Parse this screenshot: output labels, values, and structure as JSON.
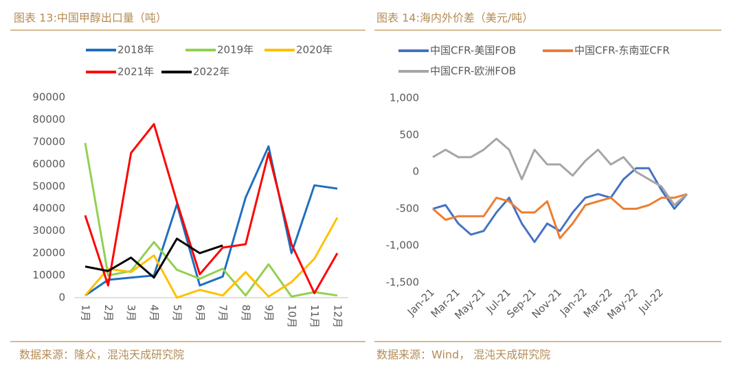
{
  "chart_data": [
    {
      "type": "line",
      "title": "图表 13:中国甲醇出口量（吨）",
      "source": "数据来源：隆众，混沌天成研究院",
      "categories": [
        "1月",
        "2月",
        "3月",
        "4月",
        "5月",
        "6月",
        "7月",
        "8月",
        "9月",
        "10月",
        "11月",
        "12月"
      ],
      "series": [
        {
          "name": "2018年",
          "color": "#1f6fbf",
          "values": [
            1000,
            8000,
            9000,
            10000,
            42000,
            5500,
            9500,
            45000,
            68000,
            20000,
            50500,
            49000
          ]
        },
        {
          "name": "2019年",
          "color": "#92d050",
          "values": [
            69500,
            10000,
            12000,
            25000,
            12500,
            8500,
            13000,
            1000,
            15000,
            500,
            2500,
            1000
          ]
        },
        {
          "name": "2020年",
          "color": "#ffc000",
          "values": [
            1000,
            13000,
            11500,
            19000,
            0,
            3500,
            1000,
            11500,
            500,
            7000,
            17500,
            36000
          ]
        },
        {
          "name": "2021年",
          "color": "#ff0000",
          "values": [
            37000,
            5500,
            65000,
            78000,
            43000,
            10500,
            22500,
            24000,
            65000,
            24000,
            2000,
            20000
          ]
        },
        {
          "name": "2022年",
          "color": "#000000",
          "values": [
            14000,
            12000,
            18000,
            9000,
            26500,
            20000,
            23500,
            null,
            null,
            null,
            null,
            null
          ]
        }
      ],
      "ylim": [
        0,
        90000
      ],
      "yticks": [
        0,
        10000,
        20000,
        30000,
        40000,
        50000,
        60000,
        70000,
        80000,
        90000
      ],
      "grid": false
    },
    {
      "type": "line",
      "title": "图表 14:海内外价差（美元/吨）",
      "source": "数据来源：Wind， 混沌天成研究院",
      "categories": [
        "Jan-21",
        null,
        "Mar-21",
        null,
        "May-21",
        null,
        "Jul-21",
        null,
        "Sep-21",
        null,
        "Nov-21",
        null,
        "Jan-22",
        null,
        "Mar-22",
        null,
        "May-22",
        null,
        "Jul-22",
        null,
        null
      ],
      "series": [
        {
          "name": "中国CFR-美国FOB",
          "color": "#4472c4",
          "values": [
            -500,
            -450,
            -700,
            -850,
            -800,
            -550,
            -350,
            -700,
            -950,
            -700,
            -800,
            -550,
            -350,
            -300,
            -350,
            -100,
            50,
            50,
            -250,
            -500,
            -300
          ]
        },
        {
          "name": "中国CFR-东南亚CFR",
          "color": "#ed7d31",
          "values": [
            -500,
            -650,
            -600,
            -600,
            -600,
            -350,
            -400,
            -550,
            -550,
            -400,
            -900,
            -700,
            -450,
            -400,
            -350,
            -500,
            -500,
            -450,
            -350,
            -350,
            -300
          ]
        },
        {
          "name": "中国CFR-欧洲FOB",
          "color": "#a5a5a5",
          "values": [
            200,
            300,
            200,
            200,
            300,
            450,
            300,
            -100,
            300,
            100,
            100,
            -50,
            150,
            300,
            100,
            200,
            0,
            -100,
            -200,
            -450,
            -300
          ]
        }
      ],
      "ylim": [
        -1500,
        1000
      ],
      "yticks": [
        {
          "value": -1500,
          "label": "-1,500"
        },
        {
          "value": -1000,
          "label": "-1,000"
        },
        -500,
        0,
        500,
        {
          "value": 1000,
          "label": "1,000"
        }
      ],
      "grid": false
    }
  ]
}
